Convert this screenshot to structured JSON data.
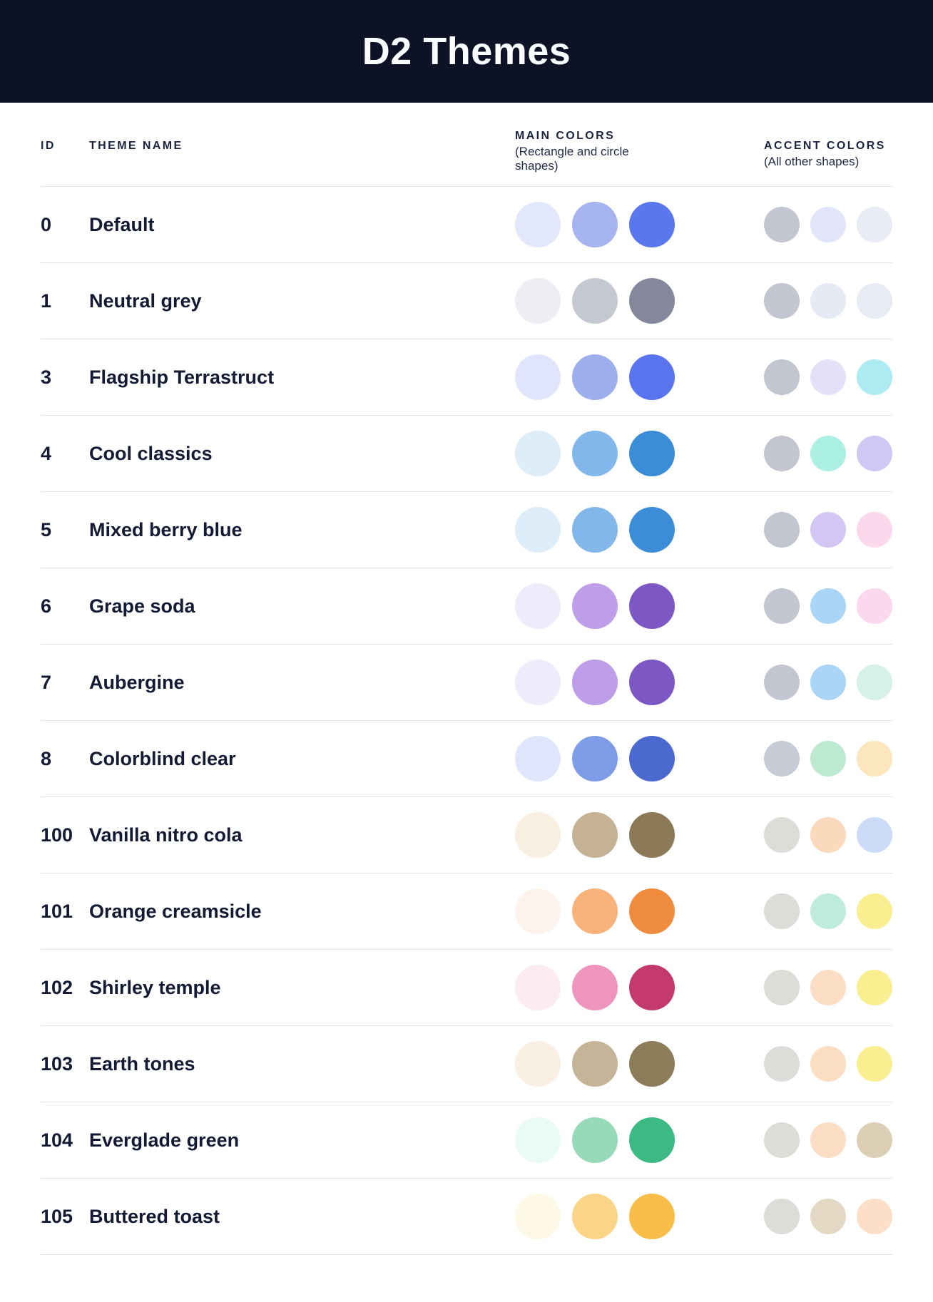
{
  "page": {
    "title": "D2 Themes"
  },
  "table": {
    "columns": {
      "id_label": "ID",
      "name_label": "THEME NAME",
      "main_colors_label": "MAIN COLORS",
      "main_colors_sublabel": "(Rectangle and circle shapes)",
      "accent_colors_label": "ACCENT COLORS",
      "accent_colors_sublabel": "(All other shapes)"
    },
    "rows": [
      {
        "id": "0",
        "name": "Default",
        "main": [
          "#E3E7FC",
          "#A5B4EE",
          "#5A77EE"
        ],
        "accent": [
          "#C3C5D0",
          "#E2E5F9",
          "#E9ECF5"
        ]
      },
      {
        "id": "1",
        "name": "Neutral grey",
        "main": [
          "#ECEEF3",
          "#C6C8D1",
          "#85889C"
        ],
        "accent": [
          "#C3C5D0",
          "#E7EAF4",
          "#E9EBF4"
        ]
      },
      {
        "id": "3",
        "name": "Flagship Terrastruct",
        "main": [
          "#E1E5FB",
          "#9DAEEC",
          "#5A74F0"
        ],
        "accent": [
          "#C3C5D0",
          "#E6DFF8",
          "#ADEBF2"
        ]
      },
      {
        "id": "4",
        "name": "Cool classics",
        "main": [
          "#DDEDF9",
          "#81B7EA",
          "#3C8DD7"
        ],
        "accent": [
          "#C3C5D0",
          "#ACF0E3",
          "#CFC7F4"
        ]
      },
      {
        "id": "5",
        "name": "Mixed berry blue",
        "main": [
          "#DDEDF9",
          "#81B7EA",
          "#3C8DD7"
        ],
        "accent": [
          "#C3C5D0",
          "#D2C7F3",
          "#FBD8EB"
        ]
      },
      {
        "id": "6",
        "name": "Grape soda",
        "main": [
          "#F0EBFA",
          "#BE9DE9",
          "#7D57C3"
        ],
        "accent": [
          "#C3C5D0",
          "#AAD5F7",
          "#FBD8EE"
        ]
      },
      {
        "id": "7",
        "name": "Aubergine",
        "main": [
          "#F0EBFA",
          "#BE9DE9",
          "#7D57C3"
        ],
        "accent": [
          "#C3C5D0",
          "#AAD5F7",
          "#D6F2E8"
        ]
      },
      {
        "id": "8",
        "name": "Colorblind clear",
        "main": [
          "#DFE6FB",
          "#7E9CE8",
          "#4B69CF"
        ],
        "accent": [
          "#C8CAD5",
          "#BDE9D0",
          "#FBE6BD"
        ]
      },
      {
        "id": "100",
        "name": "Vanilla nitro cola",
        "main": [
          "#F9EFE1",
          "#C5B294",
          "#8B7957"
        ],
        "accent": [
          "#DDDCD8",
          "#FBD9BC",
          "#CCDCF8"
        ]
      },
      {
        "id": "101",
        "name": "Orange creamsicle",
        "main": [
          "#FEF3EC",
          "#F8B37A",
          "#F08C3E"
        ],
        "accent": [
          "#DDDCD8",
          "#BFECDA",
          "#FAEF90"
        ]
      },
      {
        "id": "102",
        "name": "Shirley temple",
        "main": [
          "#FDEBF2",
          "#EE94BD",
          "#C53A6E"
        ],
        "accent": [
          "#DDDCD8",
          "#FCDEC5",
          "#FAEF90"
        ]
      },
      {
        "id": "103",
        "name": "Earth tones",
        "main": [
          "#F9EFE3",
          "#C5B497",
          "#8D7C59"
        ],
        "accent": [
          "#DDDCD8",
          "#FCDEC5",
          "#FAEF90"
        ]
      },
      {
        "id": "104",
        "name": "Everglade green",
        "main": [
          "#E9FBF3",
          "#97DABA",
          "#3DBA83"
        ],
        "accent": [
          "#DDDCD8",
          "#FCDEC5",
          "#DCCFB5"
        ]
      },
      {
        "id": "105",
        "name": "Buttered toast",
        "main": [
          "#FEF8E6",
          "#FBD587",
          "#F8BE47"
        ],
        "accent": [
          "#DDDCD8",
          "#E3D8C3",
          "#FDDEC6"
        ]
      }
    ]
  },
  "colors": {
    "banner_bg": "#0D1226",
    "text": "#141A33",
    "divider": "#E1E4EE"
  }
}
